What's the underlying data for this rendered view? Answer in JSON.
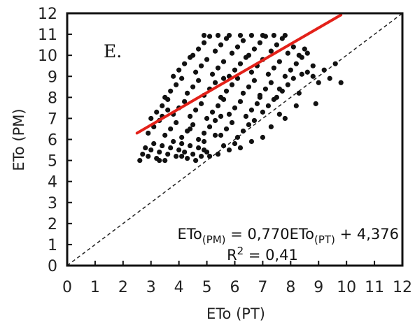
{
  "chart_data": {
    "type": "scatter",
    "xlabel": "ETo (PT)",
    "ylabel": "ETo (PM)",
    "xlim": [
      0,
      12
    ],
    "ylim": [
      0,
      12
    ],
    "x_ticks": [
      "0",
      "1",
      "2",
      "3",
      "4",
      "5",
      "6",
      "7",
      "8",
      "9",
      "10",
      "11",
      "12"
    ],
    "y_ticks": [
      "0",
      "1",
      "2",
      "3",
      "4",
      "5",
      "6",
      "7",
      "8",
      "9",
      "10",
      "11",
      "12"
    ],
    "panel_label": "E.",
    "grid": false,
    "point_color": "#111111",
    "fit_color": "#e32119",
    "regression": {
      "slope": 0.77,
      "intercept": 4.376,
      "x_range": [
        2.5,
        9.8
      ],
      "r_squared": 0.41
    },
    "one_to_one_line": true,
    "equation": {
      "lhs": "ETo",
      "lhs_sub": "(PM)",
      "rhs_prefix": " = 0,770ETo",
      "rhs_sub": "(PT)",
      "rhs_suffix": " + 4,376",
      "r2_label": "R",
      "r2_sup": "2",
      "r2_value": " = 0,41"
    },
    "points": [
      [
        2.6,
        5.0
      ],
      [
        2.7,
        5.3
      ],
      [
        2.8,
        5.6
      ],
      [
        2.9,
        5.2
      ],
      [
        3.0,
        5.5
      ],
      [
        3.1,
        5.8
      ],
      [
        3.2,
        5.1
      ],
      [
        3.3,
        5.4
      ],
      [
        3.4,
        5.7
      ],
      [
        3.5,
        5.0
      ],
      [
        3.6,
        5.3
      ],
      [
        3.7,
        5.6
      ],
      [
        3.8,
        5.9
      ],
      [
        3.9,
        5.2
      ],
      [
        4.0,
        5.5
      ],
      [
        4.1,
        5.8
      ],
      [
        4.2,
        5.4
      ],
      [
        4.3,
        5.1
      ],
      [
        4.4,
        5.7
      ],
      [
        4.5,
        5.3
      ],
      [
        4.6,
        5.0
      ],
      [
        4.7,
        5.6
      ],
      [
        4.8,
        5.2
      ],
      [
        4.9,
        5.9
      ],
      [
        5.0,
        5.4
      ],
      [
        2.9,
        6.3
      ],
      [
        3.1,
        6.6
      ],
      [
        3.3,
        6.9
      ],
      [
        3.5,
        6.2
      ],
      [
        3.7,
        6.5
      ],
      [
        3.9,
        6.8
      ],
      [
        4.1,
        6.1
      ],
      [
        4.3,
        6.4
      ],
      [
        4.5,
        6.7
      ],
      [
        4.7,
        6.0
      ],
      [
        4.9,
        6.3
      ],
      [
        5.1,
        6.6
      ],
      [
        5.3,
        6.9
      ],
      [
        5.5,
        6.2
      ],
      [
        5.7,
        6.5
      ],
      [
        5.9,
        6.8
      ],
      [
        6.1,
        6.1
      ],
      [
        6.3,
        6.4
      ],
      [
        6.5,
        6.7
      ],
      [
        6.7,
        6.9
      ],
      [
        3.0,
        7.0
      ],
      [
        3.2,
        7.3
      ],
      [
        3.4,
        7.6
      ],
      [
        3.6,
        7.9
      ],
      [
        3.8,
        7.2
      ],
      [
        4.0,
        7.5
      ],
      [
        4.2,
        7.8
      ],
      [
        4.4,
        7.1
      ],
      [
        4.6,
        7.4
      ],
      [
        4.8,
        7.7
      ],
      [
        5.0,
        7.0
      ],
      [
        5.2,
        7.3
      ],
      [
        5.4,
        7.6
      ],
      [
        5.6,
        7.9
      ],
      [
        5.8,
        7.2
      ],
      [
        6.0,
        7.5
      ],
      [
        6.2,
        7.8
      ],
      [
        6.4,
        7.1
      ],
      [
        6.6,
        7.4
      ],
      [
        6.8,
        7.7
      ],
      [
        7.0,
        7.3
      ],
      [
        7.2,
        7.6
      ],
      [
        7.4,
        7.9
      ],
      [
        7.6,
        7.2
      ],
      [
        3.5,
        8.0
      ],
      [
        3.7,
        8.3
      ],
      [
        3.9,
        8.6
      ],
      [
        4.1,
        8.9
      ],
      [
        4.3,
        8.2
      ],
      [
        4.5,
        8.5
      ],
      [
        4.7,
        8.8
      ],
      [
        4.9,
        8.1
      ],
      [
        5.1,
        8.4
      ],
      [
        5.3,
        8.7
      ],
      [
        5.5,
        8.0
      ],
      [
        5.7,
        8.3
      ],
      [
        5.9,
        8.6
      ],
      [
        6.1,
        8.9
      ],
      [
        6.3,
        8.2
      ],
      [
        6.5,
        8.5
      ],
      [
        6.7,
        8.8
      ],
      [
        6.9,
        8.1
      ],
      [
        7.1,
        8.4
      ],
      [
        7.3,
        8.7
      ],
      [
        7.5,
        8.0
      ],
      [
        7.7,
        8.3
      ],
      [
        7.9,
        8.6
      ],
      [
        8.1,
        8.9
      ],
      [
        8.3,
        8.2
      ],
      [
        3.8,
        9.0
      ],
      [
        4.0,
        9.3
      ],
      [
        4.2,
        9.6
      ],
      [
        4.4,
        9.9
      ],
      [
        4.6,
        9.2
      ],
      [
        4.8,
        9.5
      ],
      [
        5.0,
        9.8
      ],
      [
        5.2,
        9.1
      ],
      [
        5.4,
        9.4
      ],
      [
        5.6,
        9.7
      ],
      [
        5.8,
        9.0
      ],
      [
        6.0,
        9.3
      ],
      [
        6.2,
        9.6
      ],
      [
        6.4,
        9.9
      ],
      [
        6.6,
        9.2
      ],
      [
        6.8,
        9.5
      ],
      [
        7.0,
        9.8
      ],
      [
        7.2,
        9.1
      ],
      [
        7.4,
        9.4
      ],
      [
        7.6,
        9.7
      ],
      [
        7.8,
        9.0
      ],
      [
        8.0,
        9.3
      ],
      [
        8.2,
        9.6
      ],
      [
        8.4,
        9.9
      ],
      [
        8.6,
        9.2
      ],
      [
        8.8,
        9.5
      ],
      [
        4.5,
        10.0
      ],
      [
        4.7,
        10.3
      ],
      [
        4.9,
        10.6
      ],
      [
        5.1,
        10.9
      ],
      [
        5.3,
        10.2
      ],
      [
        5.5,
        10.5
      ],
      [
        5.7,
        10.8
      ],
      [
        5.9,
        10.1
      ],
      [
        6.1,
        10.4
      ],
      [
        6.3,
        10.7
      ],
      [
        6.5,
        10.0
      ],
      [
        6.7,
        10.3
      ],
      [
        6.9,
        10.6
      ],
      [
        7.1,
        10.9
      ],
      [
        7.3,
        10.2
      ],
      [
        7.5,
        10.5
      ],
      [
        7.7,
        10.8
      ],
      [
        7.9,
        10.1
      ],
      [
        8.1,
        10.4
      ],
      [
        8.3,
        10.0
      ],
      [
        8.5,
        10.3
      ],
      [
        4.9,
        10.95
      ],
      [
        5.4,
        10.95
      ],
      [
        5.8,
        10.95
      ],
      [
        6.2,
        10.95
      ],
      [
        6.6,
        10.95
      ],
      [
        7.0,
        10.95
      ],
      [
        7.4,
        10.95
      ],
      [
        7.8,
        10.95
      ],
      [
        8.6,
        10.1
      ],
      [
        8.8,
        9.0
      ],
      [
        9.0,
        8.7
      ],
      [
        9.2,
        9.3
      ],
      [
        9.4,
        8.9
      ],
      [
        9.6,
        9.6
      ],
      [
        9.8,
        8.7
      ],
      [
        8.9,
        7.7
      ],
      [
        8.2,
        7.6
      ],
      [
        7.8,
        7.0
      ],
      [
        7.3,
        6.6
      ],
      [
        7.0,
        6.1
      ],
      [
        6.6,
        5.9
      ],
      [
        6.2,
        5.6
      ],
      [
        5.8,
        5.5
      ],
      [
        5.4,
        5.3
      ],
      [
        5.1,
        5.2
      ],
      [
        3.3,
        5.0
      ],
      [
        4.1,
        5.2
      ],
      [
        4.9,
        5.5
      ],
      [
        5.6,
        5.7
      ],
      [
        6.0,
        5.8
      ],
      [
        5.3,
        6.2
      ],
      [
        5.5,
        7.1
      ],
      [
        5.6,
        8.9
      ],
      [
        6.9,
        8.0
      ],
      [
        7.6,
        8.4
      ],
      [
        8.4,
        9.1
      ],
      [
        3.4,
        7.1
      ],
      [
        3.6,
        7.4
      ],
      [
        4.4,
        6.5
      ]
    ]
  }
}
